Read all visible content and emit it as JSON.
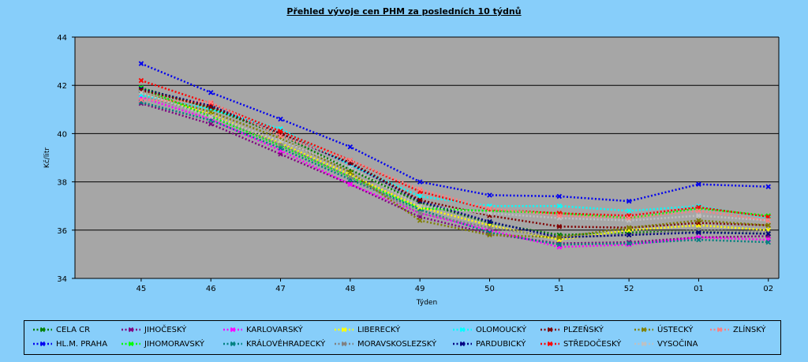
{
  "chart_data": {
    "type": "line",
    "title": "Přehled vývoje cen PHM za posledních 10 týdnů",
    "xlabel": "Týden",
    "ylabel": "Kč/litr",
    "ylim": [
      34,
      44
    ],
    "yticks": [
      34,
      36,
      38,
      40,
      42,
      44
    ],
    "grid": true,
    "legend_position": "bottom",
    "categories": [
      "45",
      "46",
      "47",
      "48",
      "49",
      "50",
      "51",
      "52",
      "01",
      "02"
    ],
    "series": [
      {
        "name": "CELA CR",
        "color": "#008000",
        "values": [
          41.9,
          41.05,
          39.95,
          38.5,
          37.15,
          36.3,
          35.8,
          35.9,
          35.95,
          35.85
        ]
      },
      {
        "name": "HL.M. PRAHA",
        "color": "#0000EE",
        "values": [
          42.9,
          41.7,
          40.6,
          39.45,
          38.0,
          37.45,
          37.4,
          37.2,
          37.9,
          37.8
        ]
      },
      {
        "name": "JIHOČESKÝ",
        "color": "#800080",
        "values": [
          41.25,
          40.4,
          39.15,
          37.9,
          36.55,
          35.85,
          35.45,
          35.5,
          35.7,
          35.75
        ]
      },
      {
        "name": "JIHOMORAVSKÝ",
        "color": "#00FF00",
        "values": [
          41.9,
          40.7,
          39.5,
          38.2,
          36.9,
          36.8,
          36.7,
          36.5,
          36.9,
          36.6
        ]
      },
      {
        "name": "KARLOVARSKÝ",
        "color": "#FF00FF",
        "values": [
          41.5,
          40.6,
          39.3,
          37.9,
          36.7,
          36.0,
          35.3,
          35.4,
          35.7,
          35.6
        ]
      },
      {
        "name": "KRÁLOVÉHRADECKÝ",
        "color": "#008080",
        "values": [
          41.3,
          40.55,
          39.4,
          38.1,
          36.85,
          35.9,
          35.4,
          35.45,
          35.6,
          35.5
        ]
      },
      {
        "name": "LIBERECKÝ",
        "color": "#FFFF00",
        "values": [
          41.7,
          40.8,
          39.6,
          38.3,
          36.95,
          36.2,
          35.6,
          36.0,
          36.2,
          36.0
        ]
      },
      {
        "name": "MORAVSKOSLEZSKÝ",
        "color": "#808080",
        "values": [
          41.6,
          40.75,
          39.55,
          38.2,
          36.7,
          36.1,
          35.7,
          35.8,
          36.0,
          35.9
        ]
      },
      {
        "name": "OLOMOUCKÝ",
        "color": "#00FFFF",
        "values": [
          41.6,
          41.0,
          40.2,
          38.7,
          37.4,
          37.0,
          37.0,
          36.8,
          37.0,
          36.5
        ]
      },
      {
        "name": "PARDUBICKÝ",
        "color": "#000080",
        "values": [
          41.85,
          41.15,
          40.0,
          38.75,
          37.2,
          36.35,
          35.7,
          35.8,
          35.9,
          35.85
        ]
      },
      {
        "name": "PLZEŇSKÝ",
        "color": "#800000",
        "values": [
          41.8,
          41.1,
          40.0,
          38.8,
          37.25,
          36.6,
          36.15,
          36.1,
          36.3,
          36.2
        ]
      },
      {
        "name": "STŘEDOČESKÝ",
        "color": "#FF0000",
        "values": [
          42.2,
          41.25,
          40.1,
          38.9,
          37.6,
          36.85,
          36.7,
          36.6,
          36.95,
          36.55
        ]
      },
      {
        "name": "ÚSTECKÝ",
        "color": "#808000",
        "values": [
          41.7,
          40.9,
          39.8,
          38.4,
          36.4,
          35.8,
          35.7,
          36.1,
          36.4,
          36.2
        ]
      },
      {
        "name": "VYSOČINA",
        "color": "#C0C0C0",
        "values": [
          41.7,
          40.7,
          39.7,
          38.6,
          37.0,
          36.7,
          36.5,
          36.4,
          36.6,
          36.4
        ]
      },
      {
        "name": "ZLÍNSKÝ",
        "color": "#FF8080",
        "values": [
          41.4,
          41.3,
          39.9,
          38.9,
          37.7,
          36.9,
          36.6,
          36.5,
          36.8,
          36.4
        ]
      }
    ]
  }
}
